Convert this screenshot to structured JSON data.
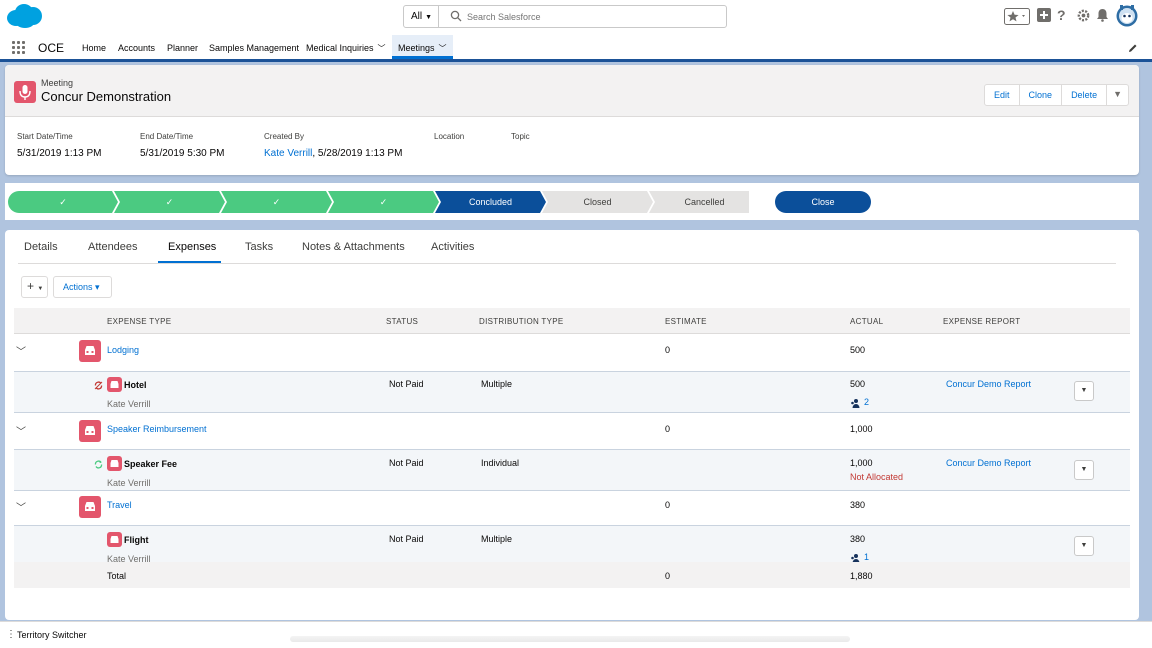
{
  "topbar": {
    "search_scope": "All",
    "search_placeholder": "Search Salesforce"
  },
  "nav": {
    "app_name": "OCE",
    "items": [
      {
        "label": "Home"
      },
      {
        "label": "Accounts"
      },
      {
        "label": "Planner"
      },
      {
        "label": "Samples Management"
      },
      {
        "label": "Medical Inquiries"
      },
      {
        "label": "Meetings"
      }
    ]
  },
  "record": {
    "type": "Meeting",
    "name": "Concur Demonstration",
    "actions": [
      "Edit",
      "Clone",
      "Delete"
    ],
    "fields": [
      {
        "label": "Start Date/Time",
        "value": "5/31/2019 1:13 PM"
      },
      {
        "label": "End Date/Time",
        "value": "5/31/2019 5:30 PM"
      },
      {
        "label": "Created By",
        "link": "Kate Verrill",
        "value": ", 5/28/2019 1:13 PM"
      },
      {
        "label": "Location",
        "value": ""
      },
      {
        "label": "Topic",
        "value": ""
      }
    ]
  },
  "path": {
    "steps": [
      {
        "label": "✓",
        "state": "done"
      },
      {
        "label": "✓",
        "state": "done"
      },
      {
        "label": "✓",
        "state": "done"
      },
      {
        "label": "✓",
        "state": "done"
      },
      {
        "label": "Concluded",
        "state": "current"
      },
      {
        "label": "Closed",
        "state": "todo"
      },
      {
        "label": "Cancelled",
        "state": "todo"
      }
    ],
    "close_button": "Close"
  },
  "tabs": [
    "Details",
    "Attendees",
    "Expenses",
    "Tasks",
    "Notes & Attachments",
    "Activities"
  ],
  "toolbar": {
    "add_label": "+",
    "actions_label": "Actions ▾"
  },
  "grid": {
    "columns": [
      "EXPENSE TYPE",
      "STATUS",
      "DISTRIBUTION TYPE",
      "ESTIMATE",
      "ACTUAL",
      "EXPENSE REPORT"
    ],
    "groups": [
      {
        "type": "Lodging",
        "estimate": "0",
        "actual": "500",
        "item": {
          "name": "Hotel",
          "owner": "Kate Verrill",
          "status": "Not Paid",
          "distribution": "Multiple",
          "actual": "500",
          "attendees": "2",
          "report": "Concur Demo Report"
        }
      },
      {
        "type": "Speaker Reimbursement",
        "estimate": "0",
        "actual": "1,000",
        "item": {
          "name": "Speaker Fee",
          "owner": "Kate Verrill",
          "status": "Not Paid",
          "distribution": "Individual",
          "actual": "1,000",
          "note": "Not Allocated",
          "report": "Concur Demo Report"
        }
      },
      {
        "type": "Travel",
        "estimate": "0",
        "actual": "380",
        "item": {
          "name": "Flight",
          "owner": "Kate Verrill",
          "status": "Not Paid",
          "distribution": "Multiple",
          "actual": "380",
          "attendees": "1",
          "report": ""
        }
      }
    ],
    "total": {
      "label": "Total",
      "estimate": "0",
      "actual": "1,880"
    }
  },
  "footer": {
    "label": "Territory Switcher"
  },
  "colors": {
    "brand": "#0b4f9a",
    "complete": "#4bca81",
    "expense_icon": "#e3566c",
    "link": "#0070d2"
  }
}
